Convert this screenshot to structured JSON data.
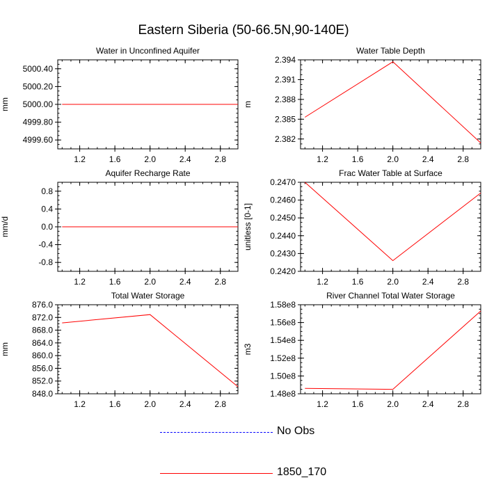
{
  "title": "Eastern Siberia (50-66.5N,90-140E)",
  "colors": {
    "series": "#ff0000",
    "obs": "#0000ff",
    "axis": "#000000"
  },
  "legend": [
    {
      "label": "No Obs",
      "color": "#0000ff",
      "style": "dashed"
    },
    {
      "label": "1850_170",
      "color": "#ff0000",
      "style": "solid"
    }
  ],
  "chart_data": [
    {
      "type": "line",
      "title": "Water in Unconfined Aquifer",
      "xlabel": "",
      "ylabel": "mm",
      "xlim": [
        0.95,
        3.0
      ],
      "ylim": [
        4999.5,
        5000.5
      ],
      "xticks": [
        "1.2",
        "1.6",
        "2.0",
        "2.4",
        "2.8"
      ],
      "yticks": [
        "4999.60",
        "4999.80",
        "5000.00",
        "5000.20",
        "5000.40"
      ],
      "x": [
        1,
        2,
        3
      ],
      "series": [
        {
          "name": "1850_170",
          "values": [
            5000.0,
            5000.0,
            5000.0
          ]
        }
      ]
    },
    {
      "type": "line",
      "title": "Water Table Depth",
      "xlabel": "",
      "ylabel": "m",
      "xlim": [
        0.95,
        3.0
      ],
      "ylim": [
        2.3805,
        2.394
      ],
      "xticks": [
        "1.2",
        "1.6",
        "2.0",
        "2.4",
        "2.8"
      ],
      "yticks": [
        "2.382",
        "2.385",
        "2.388",
        "2.391",
        "2.394"
      ],
      "x": [
        1,
        2,
        3
      ],
      "series": [
        {
          "name": "1850_170",
          "values": [
            2.3853,
            2.3937,
            2.3814
          ]
        }
      ]
    },
    {
      "type": "line",
      "title": "Aquifer Recharge Rate",
      "xlabel": "",
      "ylabel": "mm/d",
      "xlim": [
        0.95,
        3.0
      ],
      "ylim": [
        -1.0,
        1.0
      ],
      "xticks": [
        "1.2",
        "1.6",
        "2.0",
        "2.4",
        "2.8"
      ],
      "yticks": [
        "-0.8",
        "-0.4",
        "0.0",
        "0.4",
        "0.8"
      ],
      "x": [
        1,
        2,
        3
      ],
      "series": [
        {
          "name": "1850_170",
          "values": [
            0.0,
            0.0,
            0.0
          ]
        }
      ]
    },
    {
      "type": "line",
      "title": "Frac Water Table at Surface",
      "xlabel": "",
      "ylabel": "unitless [0-1]",
      "xlim": [
        0.95,
        3.0
      ],
      "ylim": [
        0.242,
        0.247
      ],
      "xticks": [
        "1.2",
        "1.6",
        "2.0",
        "2.4",
        "2.8"
      ],
      "yticks": [
        "0.2420",
        "0.2430",
        "0.2440",
        "0.2450",
        "0.2460",
        "0.2470"
      ],
      "x": [
        1,
        2,
        3
      ],
      "series": [
        {
          "name": "1850_170",
          "values": [
            0.247,
            0.2426,
            0.2464
          ]
        }
      ]
    },
    {
      "type": "line",
      "title": "Total Water Storage",
      "xlabel": "",
      "ylabel": "mm",
      "xlim": [
        0.95,
        3.0
      ],
      "ylim": [
        848.0,
        876.0
      ],
      "xticks": [
        "1.2",
        "1.6",
        "2.0",
        "2.4",
        "2.8"
      ],
      "yticks": [
        "848.0",
        "852.0",
        "856.0",
        "860.0",
        "864.0",
        "868.0",
        "872.0",
        "876.0"
      ],
      "x": [
        1,
        2,
        3
      ],
      "series": [
        {
          "name": "1850_170",
          "values": [
            870.3,
            872.9,
            850.2
          ]
        }
      ]
    },
    {
      "type": "line",
      "title": "River Channel Total Water Storage",
      "xlabel": "",
      "ylabel": "m3",
      "xlim": [
        0.95,
        3.0
      ],
      "ylim": [
        148000000,
        158000000
      ],
      "xticks": [
        "1.2",
        "1.6",
        "2.0",
        "2.4",
        "2.8"
      ],
      "yticks": [
        "1.48e8",
        "1.50e8",
        "1.52e8",
        "1.54e8",
        "1.56e8",
        "1.58e8"
      ],
      "x": [
        1,
        2,
        3
      ],
      "series": [
        {
          "name": "1850_170",
          "values": [
            148600000,
            148500000,
            157300000
          ]
        }
      ]
    }
  ]
}
